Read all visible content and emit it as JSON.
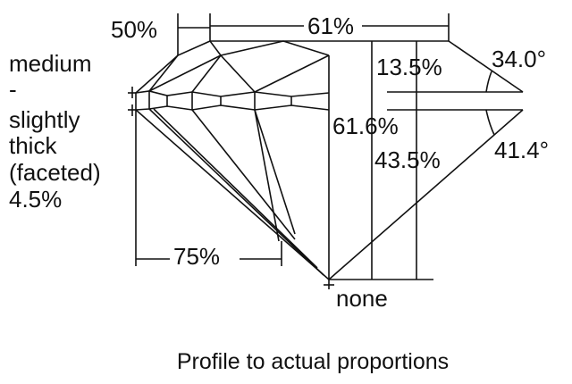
{
  "labels": {
    "crown_pct": "50%",
    "table_pct": "61%",
    "girdle_lines": [
      "medium",
      "-",
      "slightly",
      "thick",
      "(faceted)",
      "4.5%"
    ],
    "lower_half_pct": "75%",
    "culet": "none",
    "crown_height": "13.5%",
    "crown_angle": "34.0°",
    "total_depth": "61.6%",
    "pavilion_depth": "43.5%",
    "pavilion_angle": "41.4°"
  },
  "caption": "Profile to actual proportions",
  "stroke_color": "#111111"
}
